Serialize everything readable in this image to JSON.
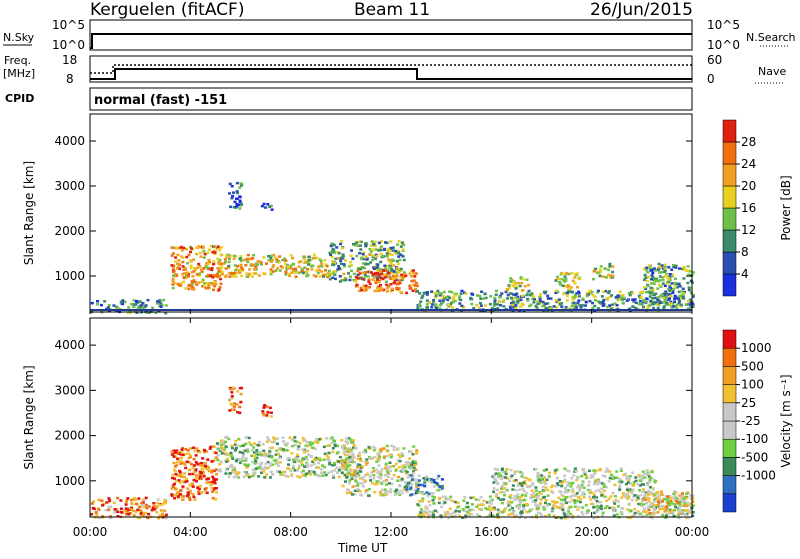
{
  "header": {
    "station": "Kerguelen (fitACF)",
    "beam": "Beam 11",
    "date": "26/Jun/2015"
  },
  "panels": {
    "nsky_label": "N.Sky",
    "nsearch_label": "N.Search",
    "nsky_ticks": [
      "10^5",
      "10^0"
    ],
    "nsearch_ticks": [
      "10^5",
      "10^0"
    ],
    "freq_label_line1": "Freq.",
    "freq_label_line2": "[MHz]",
    "freq_ticks": [
      "18",
      "8"
    ],
    "nave_label": "Nave",
    "nave_ticks": [
      "60",
      "0"
    ],
    "cpid_label": "CPID",
    "cpid_text": "normal (fast) -151"
  },
  "colors": {
    "power_scale": [
      "#1a2fe0",
      "#2b4fb0",
      "#3b8a6a",
      "#6fc04a",
      "#e8d020",
      "#f0a020",
      "#f07010",
      "#e02010"
    ],
    "velocity_scale": [
      "#1a40d0",
      "#2f6fc0",
      "#3a8a5a",
      "#6fcf40",
      "#c8c8c8",
      "#c8c8c8",
      "#f0c030",
      "#f0a020",
      "#f07010",
      "#e01010"
    ],
    "beam_line": "#1f3a8f"
  },
  "chart_data": [
    {
      "type": "heatmap",
      "quantity": "power",
      "xlabel": "Time UT",
      "ylabel": "Slant Range [km]",
      "x_ticks": [
        "00:00",
        "04:00",
        "08:00",
        "12:00",
        "16:00",
        "20:00",
        "00:00"
      ],
      "y_ticks": [
        "1000",
        "2000",
        "3000",
        "4000"
      ],
      "ylim": [
        200,
        4600
      ],
      "xlim_hours": [
        0,
        24
      ],
      "colorbar_label": "Power [dB]",
      "colorbar_ticks": [
        "4",
        "8",
        "12",
        "16",
        "20",
        "24",
        "28"
      ],
      "echo_regions": [
        {
          "t0": 0.0,
          "t1": 3.0,
          "r0": 200,
          "r1": 500,
          "level": 0.3
        },
        {
          "t0": 3.2,
          "t1": 5.2,
          "r0": 700,
          "r1": 1700,
          "level": 0.7
        },
        {
          "t0": 5.5,
          "t1": 6.0,
          "r0": 2500,
          "r1": 3100,
          "level": 0.2
        },
        {
          "t0": 6.8,
          "t1": 7.2,
          "r0": 2500,
          "r1": 2700,
          "level": 0.2
        },
        {
          "t0": 5.0,
          "t1": 9.5,
          "r0": 1000,
          "r1": 1500,
          "level": 0.6
        },
        {
          "t0": 9.5,
          "t1": 12.5,
          "r0": 900,
          "r1": 1800,
          "level": 0.4
        },
        {
          "t0": 10.5,
          "t1": 13.0,
          "r0": 650,
          "r1": 1150,
          "level": 0.85
        },
        {
          "t0": 13.0,
          "t1": 24.0,
          "r0": 250,
          "r1": 700,
          "level": 0.35
        },
        {
          "t0": 16.5,
          "t1": 17.5,
          "r0": 700,
          "r1": 1000,
          "level": 0.5
        },
        {
          "t0": 18.5,
          "t1": 19.5,
          "r0": 700,
          "r1": 1100,
          "level": 0.5
        },
        {
          "t0": 20.0,
          "t1": 20.8,
          "r0": 950,
          "r1": 1300,
          "level": 0.55
        },
        {
          "t0": 22.0,
          "t1": 24.0,
          "r0": 300,
          "r1": 1300,
          "level": 0.35
        }
      ]
    },
    {
      "type": "heatmap",
      "quantity": "velocity",
      "xlabel": "Time UT",
      "ylabel": "Slant Range [km]",
      "x_ticks": [
        "00:00",
        "04:00",
        "08:00",
        "12:00",
        "16:00",
        "20:00",
        "00:00"
      ],
      "y_ticks": [
        "1000",
        "2000",
        "3000",
        "4000"
      ],
      "ylim": [
        200,
        4600
      ],
      "xlim_hours": [
        0,
        24
      ],
      "colorbar_label": "Velocity [m s⁻¹]",
      "colorbar_ticks": [
        "1000",
        "500",
        "100",
        "25",
        "-25",
        "-100",
        "-500",
        "-1000"
      ],
      "echo_regions": [
        {
          "t0": 0.0,
          "t1": 3.0,
          "r0": 200,
          "r1": 650,
          "level": 0.8
        },
        {
          "t0": 3.2,
          "t1": 5.0,
          "r0": 600,
          "r1": 1800,
          "level": 0.85
        },
        {
          "t0": 5.5,
          "t1": 6.0,
          "r0": 2500,
          "r1": 3100,
          "level": 0.8
        },
        {
          "t0": 6.8,
          "t1": 7.2,
          "r0": 2450,
          "r1": 2700,
          "level": 0.8
        },
        {
          "t0": 5.0,
          "t1": 10.5,
          "r0": 1100,
          "r1": 2000,
          "level": 0.45
        },
        {
          "t0": 10.0,
          "t1": 13.0,
          "r0": 700,
          "r1": 1800,
          "level": 0.5
        },
        {
          "t0": 12.5,
          "t1": 14.0,
          "r0": 700,
          "r1": 1150,
          "level": 0.3
        },
        {
          "t0": 13.0,
          "t1": 24.0,
          "r0": 200,
          "r1": 700,
          "level": 0.45
        },
        {
          "t0": 16.0,
          "t1": 22.5,
          "r0": 700,
          "r1": 1300,
          "level": 0.45
        },
        {
          "t0": 22.0,
          "t1": 24.0,
          "r0": 300,
          "r1": 800,
          "level": 0.6
        }
      ]
    }
  ]
}
